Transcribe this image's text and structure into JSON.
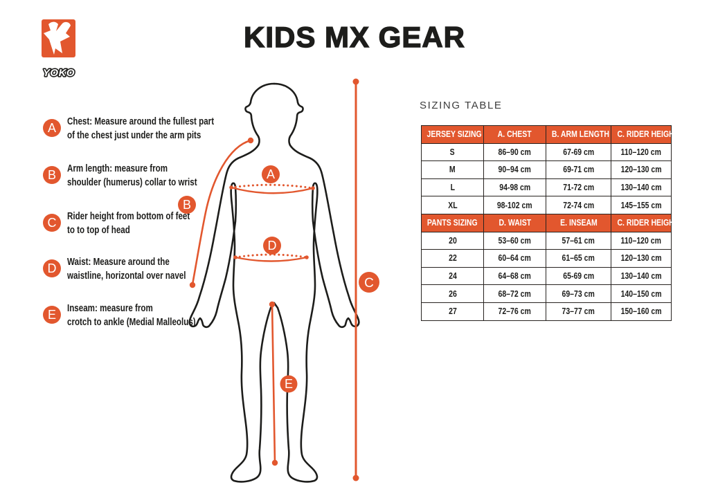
{
  "header": {
    "title": "KIDS MX GEAR",
    "brand": "YOKO"
  },
  "colors": {
    "accent_orange": "#e2572e",
    "ink": "#1d1d1b"
  },
  "annotations": [
    {
      "letter": "A",
      "line1": "Chest: Measure around  the fullest part",
      "line2": "of the chest just under the arm pits"
    },
    {
      "letter": "B",
      "line1": "Arm length: measure from",
      "line2": "shoulder (humerus) collar to wrist"
    },
    {
      "letter": "C",
      "line1": "Rider height from bottom of feet",
      "line2": "to to top of head"
    },
    {
      "letter": "D",
      "line1": "Waist: Measure around the",
      "line2": "waistline, horizontal over navel"
    },
    {
      "letter": "E",
      "line1": "Inseam: measure from",
      "line2": "crotch to ankle (Medial Malleolus)"
    }
  ],
  "diagram": {
    "markers": [
      {
        "letter": "A"
      },
      {
        "letter": "B"
      },
      {
        "letter": "C"
      },
      {
        "letter": "D"
      },
      {
        "letter": "E"
      }
    ]
  },
  "sizing": {
    "label": "SIZING TABLE",
    "jersey": {
      "headers": [
        "JERSEY SIZING",
        "A. CHEST",
        "B. ARM LENGTH",
        "C. RIDER HEIGHT"
      ],
      "rows": [
        [
          "S",
          "86–90 cm",
          "67-69 cm",
          "110–120 cm"
        ],
        [
          "M",
          "90–94 cm",
          "69-71 cm",
          "120–130 cm"
        ],
        [
          "L",
          "94-98 cm",
          "71-72 cm",
          "130–140 cm"
        ],
        [
          "XL",
          "98-102 cm",
          "72-74 cm",
          "145–155 cm"
        ]
      ]
    },
    "pants": {
      "headers": [
        "PANTS SIZING",
        "D. WAIST",
        "E. INSEAM",
        "C. RIDER HEIGHT"
      ],
      "rows": [
        [
          "20",
          "53–60 cm",
          "57–61 cm",
          "110–120 cm"
        ],
        [
          "22",
          "60–64 cm",
          "61–65 cm",
          "120–130 cm"
        ],
        [
          "24",
          "64–68 cm",
          "65-69 cm",
          "130–140 cm"
        ],
        [
          "26",
          "68–72 cm",
          "69–73 cm",
          "140–150 cm"
        ],
        [
          "27",
          "72–76 cm",
          "73–77 cm",
          "150–160 cm"
        ]
      ]
    }
  }
}
